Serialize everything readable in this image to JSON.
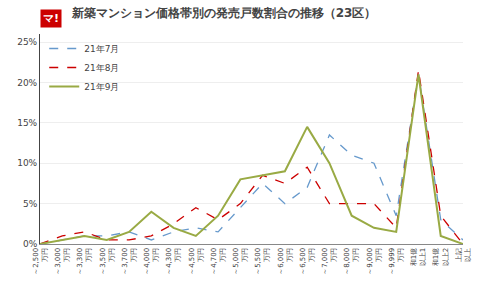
{
  "chart_data": {
    "type": "line",
    "title": "新築マンション価格帯別の発売戸数割合の推移（23区）",
    "annotations": [
      "マ!"
    ],
    "categories": [
      "～2,500\n万円",
      "～3,000\n万円",
      "～3,300\n万円",
      "～3,500\n万円",
      "～3,700\n万円",
      "～4,000\n万円",
      "～4,300\n万円",
      "～4,500\n万円",
      "～4,700\n万円",
      "～5,000\n万円",
      "～5,500\n万円",
      "～6,000\n万円",
      "～6,500\n万円",
      "～7,000\n万円",
      "～8,000\n万円",
      "～9,000\n万円",
      "～9,999\n万円",
      "和1億\n以上1",
      "和1億\n以上2",
      "上記\n以上"
    ],
    "series": [
      {
        "name": "21年7月",
        "color": "#6699cc",
        "line_style": "dashed",
        "values": [
          0.0,
          0.5,
          1.0,
          1.0,
          1.5,
          0.5,
          1.5,
          2.0,
          1.5,
          4.5,
          7.5,
          5.0,
          7.0,
          13.5,
          11.0,
          10.0,
          3.5,
          21.0,
          3.0,
          0.5
        ]
      },
      {
        "name": "21年8月",
        "color": "#cc0000",
        "line_style": "dashed",
        "values": [
          0.0,
          1.0,
          1.5,
          0.5,
          0.5,
          1.0,
          2.5,
          4.5,
          3.0,
          5.0,
          8.5,
          7.5,
          9.5,
          5.0,
          5.0,
          5.0,
          2.0,
          21.5,
          3.5,
          0.0
        ]
      },
      {
        "name": "21年9月",
        "color": "#99aa44",
        "line_style": "solid",
        "values": [
          0.0,
          0.5,
          1.0,
          0.5,
          1.5,
          4.0,
          2.0,
          1.0,
          3.5,
          8.0,
          8.5,
          9.0,
          14.5,
          10.0,
          3.5,
          2.0,
          1.5,
          21.0,
          1.0,
          0.0
        ]
      }
    ],
    "ylim": [
      0,
      26
    ],
    "yticks": [
      {
        "value": 0,
        "label": "0%"
      },
      {
        "value": 5,
        "label": "5%"
      },
      {
        "value": 10,
        "label": "10%"
      },
      {
        "value": 15,
        "label": "15%"
      },
      {
        "value": 20,
        "label": "20%"
      },
      {
        "value": 25,
        "label": "25%"
      }
    ],
    "grid": true,
    "legend": "upper left"
  }
}
